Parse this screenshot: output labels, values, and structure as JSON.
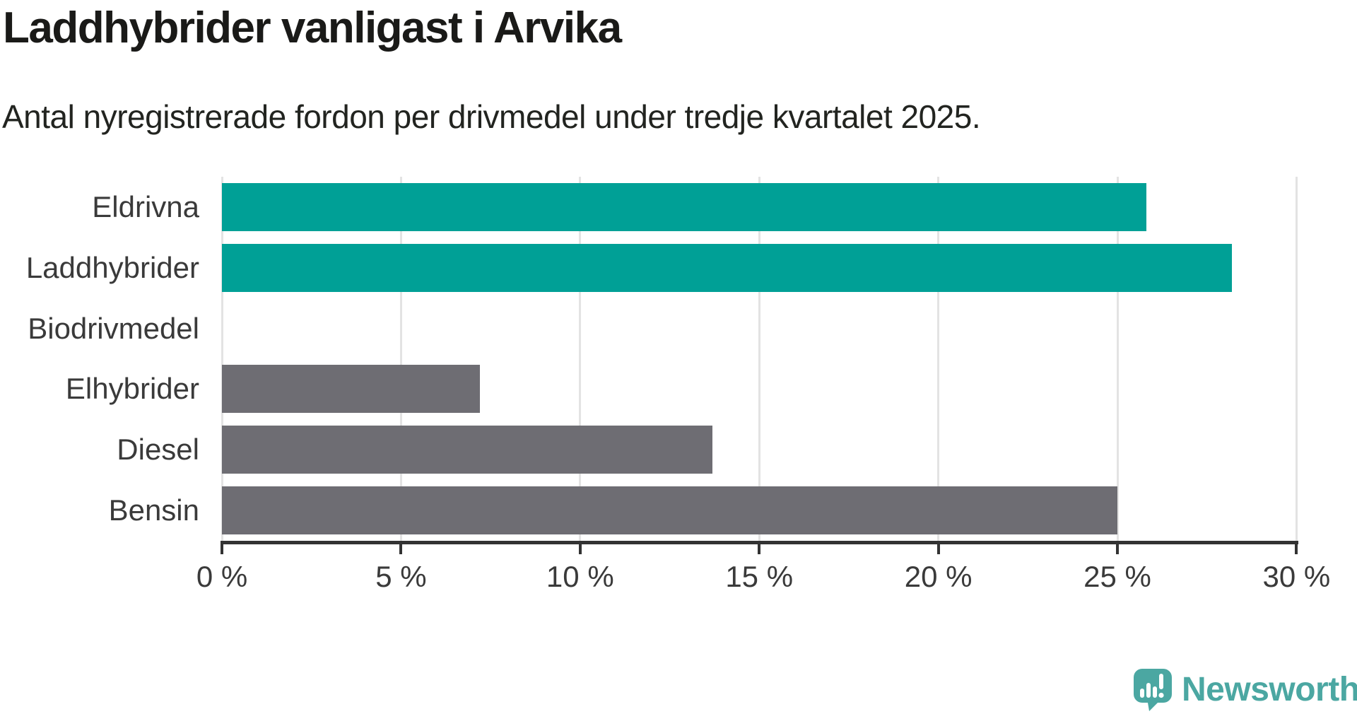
{
  "title": "Laddhybrider vanligast i Arvika",
  "subtitle": "Antal nyregistrerade fordon per drivmedel under tredje kvartalet 2025.",
  "colors": {
    "highlight": "#00A096",
    "default": "#6E6D73",
    "gridline": "#E3E3E3",
    "axis": "#333333",
    "title_text": "#1A1A18",
    "subtitle_text": "#222420",
    "tick_text": "#3A3A3A",
    "logo": "#4BA7A2"
  },
  "chart_data": {
    "type": "bar",
    "orientation": "horizontal",
    "title": "Laddhybrider vanligast i Arvika",
    "subtitle": "Antal nyregistrerade fordon per drivmedel under tredje kvartalet 2025.",
    "categories": [
      "Eldrivna",
      "Laddhybrider",
      "Biodrivmedel",
      "Elhybrider",
      "Diesel",
      "Bensin"
    ],
    "values": [
      25.8,
      28.2,
      0,
      7.2,
      13.7,
      25.0
    ],
    "unit": "%",
    "highlighted": [
      true,
      true,
      false,
      false,
      false,
      false
    ],
    "xlabel": "",
    "ylabel": "",
    "xlim": [
      0,
      30
    ],
    "x_ticks": [
      0,
      5,
      10,
      15,
      20,
      25,
      30
    ],
    "x_tick_labels": [
      "0 %",
      "5 %",
      "10 %",
      "15 %",
      "20 %",
      "25 %",
      "30 %"
    ],
    "grid": true,
    "legend": false
  },
  "branding": {
    "logo_text": "Newsworthy",
    "logo_icon": "newsworthy-speech-bubble-chart-icon"
  }
}
